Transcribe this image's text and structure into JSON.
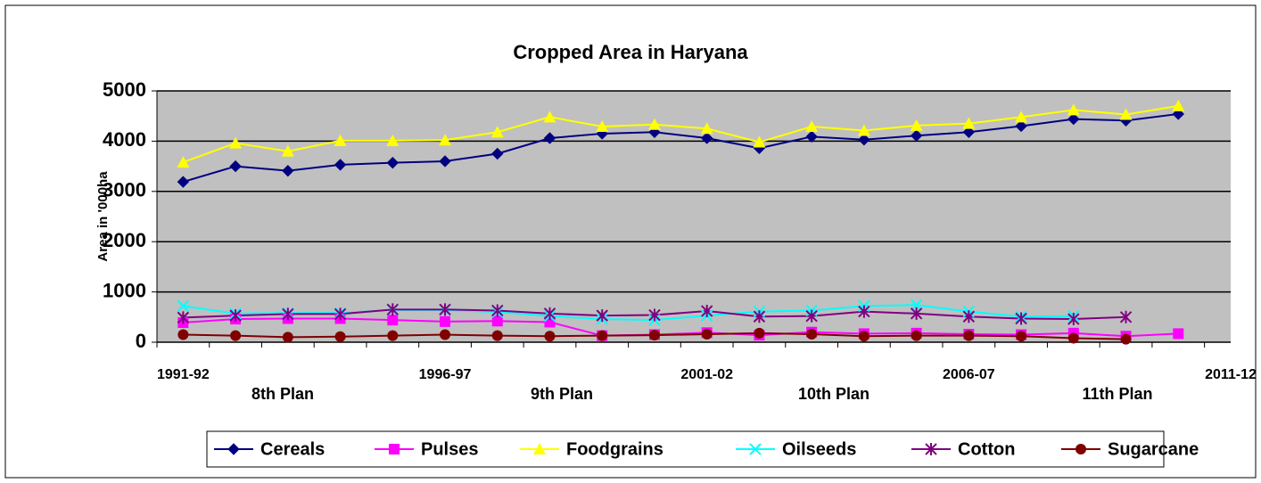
{
  "chart_data": {
    "type": "line",
    "title": "Cropped Area in Haryana",
    "y_label": "Area in '000ha",
    "categories": [
      "1991-92",
      null,
      null,
      null,
      null,
      "1996-97",
      null,
      null,
      null,
      null,
      "2001-02",
      null,
      null,
      null,
      null,
      "2006-07",
      null,
      null,
      null,
      null,
      "2011-12"
    ],
    "annotations": [
      "8th Plan",
      "9th Plan",
      "10th Plan",
      "11th Plan"
    ],
    "ylim": [
      0,
      5000
    ],
    "yticks": [
      0,
      1000,
      2000,
      3000,
      4000,
      5000
    ],
    "grid": true,
    "legend": "bottom",
    "series": [
      {
        "name": "Cereals",
        "color": "#000080",
        "marker": "diamond",
        "values": [
          3190,
          3500,
          3410,
          3530,
          3570,
          3600,
          3750,
          4060,
          4150,
          4180,
          4060,
          3860,
          4090,
          4030,
          4110,
          4180,
          4300,
          4440,
          4410,
          4540,
          null
        ]
      },
      {
        "name": "Pulses",
        "color": "#ff00ff",
        "marker": "square",
        "values": [
          390,
          460,
          470,
          470,
          440,
          410,
          420,
          400,
          130,
          150,
          190,
          140,
          200,
          170,
          180,
          160,
          150,
          180,
          120,
          170,
          null
        ]
      },
      {
        "name": "Foodgrains",
        "color": "#ffff00",
        "marker": "triangle",
        "values": [
          3580,
          3960,
          3800,
          4010,
          4010,
          4020,
          4180,
          4480,
          4290,
          4330,
          4250,
          3980,
          4290,
          4210,
          4310,
          4350,
          4480,
          4620,
          4530,
          4700,
          null
        ]
      },
      {
        "name": "Oilseeds",
        "color": "#00ffff",
        "marker": "x",
        "values": [
          720,
          570,
          580,
          580,
          640,
          640,
          600,
          520,
          460,
          440,
          530,
          610,
          630,
          720,
          740,
          610,
          510,
          520,
          null,
          null,
          null
        ]
      },
      {
        "name": "Cotton",
        "color": "#800080",
        "marker": "star",
        "values": [
          490,
          530,
          560,
          560,
          650,
          650,
          630,
          570,
          530,
          540,
          620,
          510,
          520,
          610,
          570,
          510,
          470,
          460,
          500,
          null,
          null
        ]
      },
      {
        "name": "Sugarcane",
        "color": "#800000",
        "marker": "circle",
        "values": [
          150,
          130,
          100,
          110,
          130,
          150,
          130,
          120,
          130,
          140,
          160,
          180,
          160,
          120,
          130,
          130,
          120,
          80,
          60,
          null,
          null
        ]
      }
    ]
  }
}
